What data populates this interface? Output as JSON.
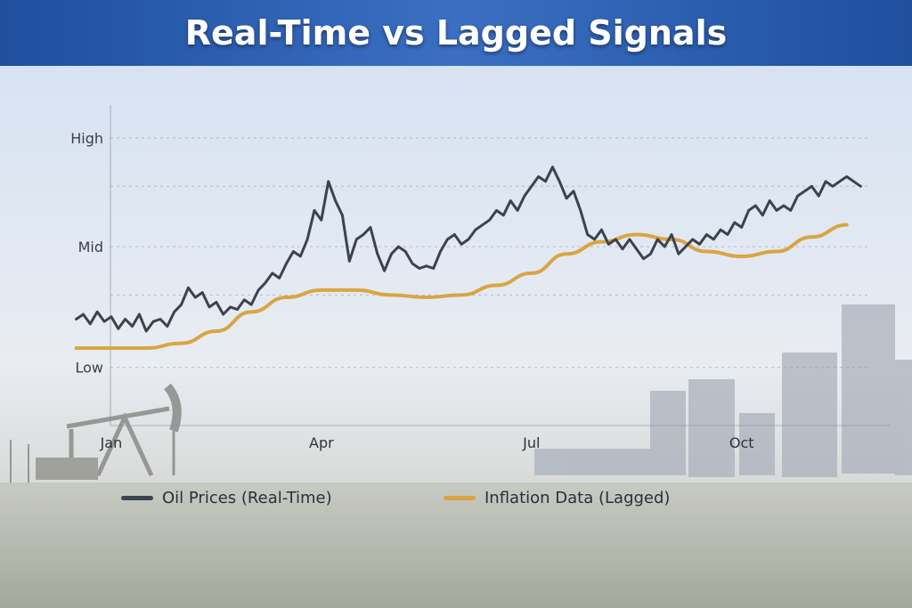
{
  "header": {
    "title": "Real-Time vs Lagged Signals"
  },
  "colors": {
    "oil": "#3d434d",
    "inflation": "#d9a543",
    "grid": "#8a93a3"
  },
  "chart_data": {
    "type": "line",
    "title": "Real-Time vs Lagged Signals",
    "x_tick_labels": [
      "Jan",
      "Apr",
      "Jul",
      "Oct"
    ],
    "x_tick_positions": [
      0.5,
      3.5,
      6.5,
      9.5
    ],
    "xlim": [
      -0.3,
      11.5
    ],
    "y_tick_labels": [
      "High",
      "Mid",
      "Low"
    ],
    "y_tick_positions": [
      100,
      55,
      5
    ],
    "ylim": [
      -15,
      100
    ],
    "grid": true,
    "legend": "bottom",
    "series": [
      {
        "name": "Oil Prices (Real-Time)",
        "x": [
          0.0,
          0.1,
          0.2,
          0.3,
          0.4,
          0.5,
          0.6,
          0.7,
          0.8,
          0.9,
          1.0,
          1.1,
          1.2,
          1.3,
          1.4,
          1.5,
          1.6,
          1.7,
          1.8,
          1.9,
          2.0,
          2.1,
          2.2,
          2.3,
          2.4,
          2.5,
          2.6,
          2.7,
          2.8,
          2.9,
          3.0,
          3.1,
          3.2,
          3.3,
          3.4,
          3.5,
          3.6,
          3.7,
          3.8,
          3.9,
          4.0,
          4.1,
          4.2,
          4.3,
          4.4,
          4.5,
          4.6,
          4.7,
          4.8,
          4.9,
          5.0,
          5.1,
          5.2,
          5.3,
          5.4,
          5.5,
          5.6,
          5.7,
          5.8,
          5.9,
          6.0,
          6.1,
          6.2,
          6.3,
          6.4,
          6.5,
          6.6,
          6.7,
          6.8,
          6.9,
          7.0,
          7.1,
          7.2,
          7.3,
          7.4,
          7.5,
          7.6,
          7.7,
          7.8,
          7.9,
          8.0,
          8.1,
          8.2,
          8.3,
          8.4,
          8.5,
          8.6,
          8.7,
          8.8,
          8.9,
          9.0,
          9.1,
          9.2,
          9.3,
          9.4,
          9.5,
          9.6,
          9.7,
          9.8,
          9.9,
          10.0,
          10.1,
          10.2,
          10.3,
          10.4,
          10.5,
          10.6,
          10.7,
          10.8,
          10.9,
          11.0,
          11.1,
          11.2
        ],
        "values": [
          25,
          27,
          23,
          28,
          24,
          26,
          21,
          25,
          22,
          27,
          20,
          24,
          25,
          22,
          28,
          31,
          38,
          34,
          36,
          30,
          32,
          27,
          30,
          29,
          33,
          31,
          37,
          40,
          44,
          42,
          48,
          53,
          51,
          58,
          70,
          66,
          82,
          74,
          68,
          49,
          58,
          60,
          63,
          52,
          45,
          52,
          55,
          53,
          48,
          46,
          47,
          46,
          53,
          58,
          60,
          56,
          58,
          62,
          64,
          66,
          70,
          68,
          74,
          70,
          76,
          80,
          84,
          82,
          88,
          82,
          75,
          78,
          70,
          60,
          58,
          62,
          56,
          58,
          54,
          58,
          54,
          50,
          52,
          58,
          55,
          60,
          52,
          55,
          58,
          56,
          60,
          58,
          62,
          60,
          65,
          63,
          70,
          72,
          68,
          74,
          70,
          72,
          70,
          76,
          78,
          80,
          76,
          82,
          80,
          82,
          84,
          82,
          80
        ],
        "color": "#3d434d"
      },
      {
        "name": "Inflation Data (Lagged)",
        "x": [
          0.0,
          0.5,
          1.0,
          1.5,
          2.0,
          2.5,
          3.0,
          3.5,
          4.0,
          4.5,
          5.0,
          5.5,
          6.0,
          6.5,
          7.0,
          7.5,
          8.0,
          8.5,
          9.0,
          9.5,
          10.0,
          10.5,
          11.0
        ],
        "values": [
          13,
          13,
          13,
          15,
          20,
          28,
          34,
          37,
          37,
          35,
          34,
          35,
          39,
          44,
          52,
          57,
          60,
          58,
          53,
          51,
          53,
          59,
          64
        ],
        "color": "#d9a543"
      }
    ]
  }
}
